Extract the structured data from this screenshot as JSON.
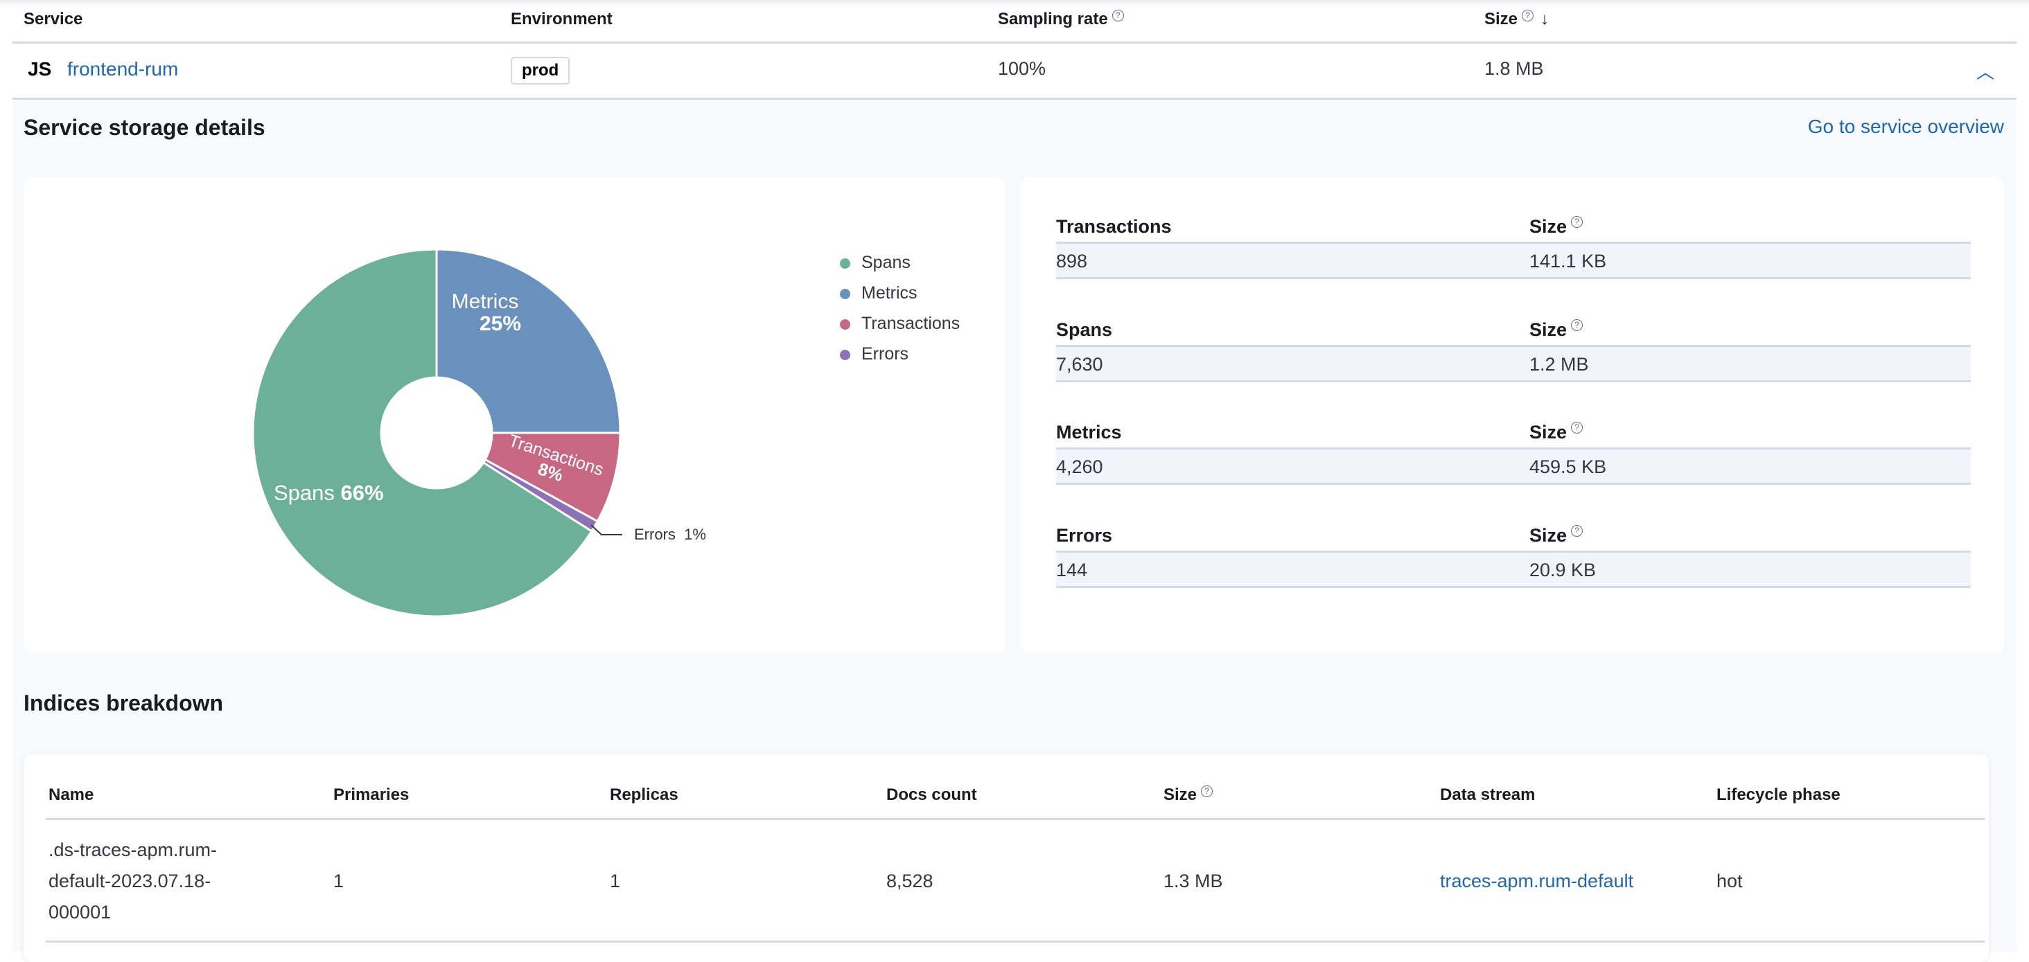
{
  "services_table": {
    "columns": [
      "Service",
      "Environment",
      "Sampling rate",
      "Size"
    ],
    "row": {
      "agent_icon": "JS",
      "service": "frontend-rum",
      "environment": "prod",
      "sampling_rate": "100%",
      "size": "1.8 MB"
    }
  },
  "details": {
    "title": "Service storage details",
    "overview_link": "Go to service overview",
    "legend": [
      "Spans",
      "Metrics",
      "Transactions",
      "Errors"
    ],
    "labels": {
      "metrics": "Metrics",
      "metrics_pct": "25%",
      "transactions": "Transactions",
      "transactions_pct": "8%",
      "spans": "Spans",
      "spans_pct": "66%",
      "errors": "Errors  1%"
    },
    "stats": [
      {
        "label": "Transactions",
        "size_label": "Size",
        "count": "898",
        "size": "141.1 KB"
      },
      {
        "label": "Spans",
        "size_label": "Size",
        "count": "7,630",
        "size": "1.2 MB"
      },
      {
        "label": "Metrics",
        "size_label": "Size",
        "count": "4,260",
        "size": "459.5 KB"
      },
      {
        "label": "Errors",
        "size_label": "Size",
        "count": "144",
        "size": "20.9 KB"
      }
    ]
  },
  "chart_data": {
    "type": "pie",
    "donut": true,
    "categories": [
      "Metrics",
      "Transactions",
      "Errors",
      "Spans"
    ],
    "values": [
      25,
      8,
      1,
      66
    ],
    "colors": [
      "#6a91bd",
      "#c86784",
      "#8d73b5",
      "#6db09a"
    ],
    "legend_position": "right"
  },
  "indices": {
    "title": "Indices breakdown",
    "columns": [
      "Name",
      "Primaries",
      "Replicas",
      "Docs count",
      "Size",
      "Data stream",
      "Lifecycle phase"
    ],
    "rows": [
      {
        "name_lines": [
          ".ds-traces-apm.rum-",
          "default-2023.07.18-",
          "000001"
        ],
        "primaries": "1",
        "replicas": "1",
        "docs_count": "8,528",
        "size": "1.3 MB",
        "data_stream": "traces-apm.rum-default",
        "lifecycle_phase": "hot"
      }
    ]
  }
}
